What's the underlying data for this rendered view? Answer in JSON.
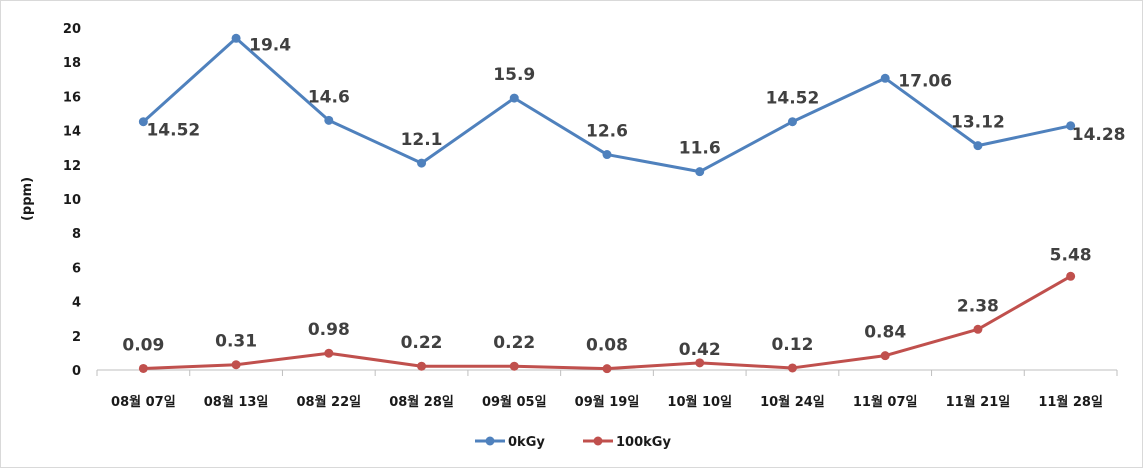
{
  "chart_data": {
    "type": "line",
    "title": "",
    "xlabel": "",
    "ylabel": "(ppm)",
    "ylim": [
      0,
      20
    ],
    "yticks": [
      "0",
      "2",
      "4",
      "6",
      "8",
      "10",
      "12",
      "14",
      "16",
      "18",
      "20"
    ],
    "categories": [
      "08월 07일",
      "08월 13일",
      "08월 22일",
      "08월 28일",
      "09월 05일",
      "09월 19일",
      "10월 10일",
      "10월 24일",
      "11월 07일",
      "11월 21일",
      "11월 28일"
    ],
    "series": [
      {
        "name": "0kGy",
        "color": "#4f81bd",
        "values": [
          14.52,
          19.4,
          14.6,
          12.1,
          15.9,
          12.6,
          11.6,
          14.52,
          17.06,
          13.12,
          14.28
        ],
        "labels": [
          "14.52",
          "19.4",
          "14.6",
          "12.1",
          "15.9",
          "12.6",
          "11.6",
          "14.52",
          "17.06",
          "13.12",
          "14.28"
        ]
      },
      {
        "name": "100kGy",
        "color": "#c0504d",
        "values": [
          0.09,
          0.31,
          0.98,
          0.22,
          0.22,
          0.08,
          0.42,
          0.12,
          0.84,
          2.38,
          5.48
        ],
        "labels": [
          "0.09",
          "0.31",
          "0.98",
          "0.22",
          "0.22",
          "0.08",
          "0.42",
          "0.12",
          "0.84",
          "2.38",
          "5.48"
        ]
      }
    ],
    "grid": false,
    "legend": "bottom"
  }
}
